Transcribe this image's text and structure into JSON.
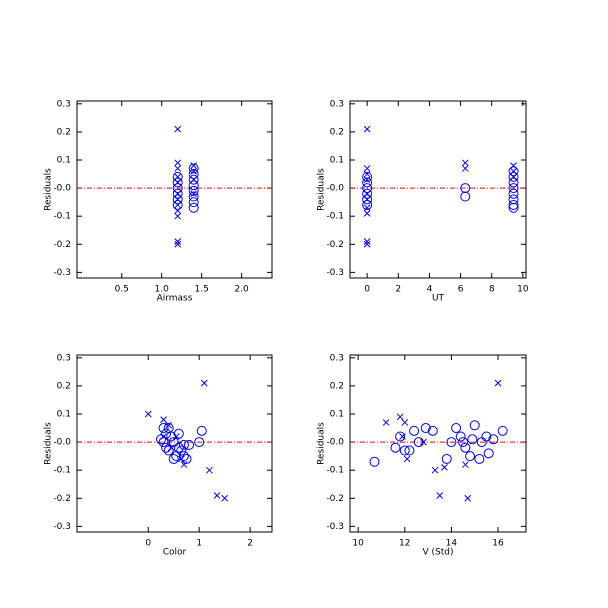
{
  "chart_data": [
    {
      "type": "scatter",
      "x_label": "Airmass",
      "y_label": "Residuals",
      "xlim": [
        -0.06,
        2.38
      ],
      "ylim": [
        -0.32,
        0.31
      ],
      "xticks": [
        0.5,
        {
          "value": 1,
          "label": "1.0"
        },
        1.5,
        {
          "value": 2,
          "label": "2.0"
        }
      ],
      "yticks": [
        -0.3,
        -0.2,
        -0.1,
        {
          "value": 0,
          "label": "-0.0"
        },
        0.1,
        0.2,
        0.3
      ],
      "hline": 0,
      "hline_color": "#ff0000",
      "series": [
        {
          "marker": "x",
          "color": "#0000ff",
          "x": [
            1.2,
            1.2,
            1.2,
            1.2,
            1.2,
            1.2,
            1.2,
            1.2,
            1.2,
            1.2,
            1.2,
            1.2,
            1.4,
            1.4,
            1.4,
            1.4
          ],
          "values": [
            0.21,
            0.09,
            0.07,
            0.04,
            0.02,
            -0.02,
            -0.04,
            -0.06,
            -0.08,
            -0.1,
            -0.19,
            -0.2,
            0.08,
            0.06,
            0.03,
            -0.02
          ]
        },
        {
          "marker": "circle",
          "color": "#0000ff",
          "x": [
            1.2,
            1.2,
            1.2,
            1.2,
            1.2,
            1.2,
            1.4,
            1.4,
            1.4,
            1.4,
            1.4,
            1.4,
            1.4,
            1.4
          ],
          "values": [
            0.04,
            0.02,
            0.0,
            -0.02,
            -0.04,
            -0.06,
            0.07,
            0.05,
            0.03,
            0.01,
            -0.01,
            -0.03,
            -0.05,
            -0.07
          ]
        }
      ]
    },
    {
      "type": "scatter",
      "x_label": "UT",
      "y_label": "Residuals",
      "xlim": [
        -1.1,
        10.2
      ],
      "ylim": [
        -0.32,
        0.31
      ],
      "xticks": [
        0,
        2,
        4,
        6,
        8,
        10
      ],
      "yticks": [
        -0.3,
        -0.2,
        -0.1,
        {
          "value": 0,
          "label": "-0.0"
        },
        0.1,
        0.2,
        0.3
      ],
      "hline": 0,
      "hline_color": "#ff0000",
      "series": [
        {
          "marker": "x",
          "color": "#0000ff",
          "x": [
            0,
            0,
            0,
            0,
            0,
            0,
            0,
            0,
            0,
            0,
            6.3,
            6.3,
            9.4,
            9.4,
            9.4
          ],
          "values": [
            0.21,
            0.07,
            0.05,
            0.03,
            -0.02,
            -0.04,
            -0.07,
            -0.09,
            -0.19,
            -0.2,
            0.09,
            0.07,
            0.08,
            0.06,
            0.04
          ]
        },
        {
          "marker": "circle",
          "color": "#0000ff",
          "x": [
            0,
            0,
            0,
            0,
            0,
            0,
            6.3,
            6.3,
            9.4,
            9.4,
            9.4,
            9.4,
            9.4,
            9.4,
            9.4,
            9.4
          ],
          "values": [
            0.04,
            0.02,
            0.0,
            -0.02,
            -0.04,
            -0.06,
            0.0,
            -0.03,
            0.06,
            0.04,
            0.02,
            0.0,
            -0.02,
            -0.04,
            -0.06,
            -0.07
          ]
        }
      ]
    },
    {
      "type": "scatter",
      "x_label": "Color",
      "y_label": "Residuals",
      "xlim": [
        -1.4,
        2.43
      ],
      "ylim": [
        -0.32,
        0.31
      ],
      "xticks": [
        0,
        1,
        2
      ],
      "yticks": [
        -0.3,
        -0.2,
        -0.1,
        {
          "value": 0,
          "label": "-0.0"
        },
        0.1,
        0.2,
        0.3
      ],
      "hline": 0,
      "hline_color": "#ff0000",
      "series": [
        {
          "marker": "x",
          "color": "#0000ff",
          "x": [
            0.0,
            0.3,
            0.4,
            1.1,
            1.2,
            1.35,
            1.5,
            0.7,
            0.65,
            0.55,
            0.3,
            0.45
          ],
          "values": [
            0.1,
            0.08,
            0.06,
            0.21,
            -0.1,
            -0.19,
            -0.2,
            -0.08,
            -0.06,
            0.02,
            0.02,
            -0.02
          ]
        },
        {
          "marker": "circle",
          "color": "#0000ff",
          "x": [
            0.3,
            0.35,
            0.3,
            0.35,
            0.4,
            0.45,
            0.5,
            0.55,
            0.6,
            0.65,
            0.7,
            0.75,
            0.5,
            0.8,
            1.0,
            1.05,
            0.4,
            0.6,
            0.7,
            0.25
          ],
          "values": [
            0.05,
            0.03,
            0.0,
            -0.02,
            -0.03,
            0.02,
            0.0,
            -0.05,
            -0.02,
            -0.03,
            -0.05,
            -0.06,
            -0.06,
            -0.01,
            0.0,
            0.04,
            0.05,
            0.03,
            -0.01,
            0.01
          ]
        }
      ]
    },
    {
      "type": "scatter",
      "x_label": "V (Std)",
      "y_label": "Residuals",
      "xlim": [
        9.65,
        17.2
      ],
      "ylim": [
        -0.32,
        0.31
      ],
      "xticks": [
        10,
        12,
        14,
        16
      ],
      "yticks": [
        -0.3,
        -0.2,
        -0.1,
        {
          "value": 0,
          "label": "-0.0"
        },
        0.1,
        0.2,
        0.3
      ],
      "hline": 0,
      "hline_color": "#ff0000",
      "series": [
        {
          "marker": "x",
          "color": "#0000ff",
          "x": [
            11.2,
            11.8,
            12.0,
            12.1,
            11.9,
            13.3,
            13.5,
            13.7,
            14.7,
            14.6,
            16.0,
            12.8
          ],
          "values": [
            0.07,
            0.09,
            0.07,
            -0.06,
            0.02,
            -0.1,
            -0.19,
            -0.09,
            -0.2,
            -0.08,
            0.21,
            0.0
          ]
        },
        {
          "marker": "circle",
          "color": "#0000ff",
          "x": [
            10.7,
            11.6,
            11.8,
            12.0,
            12.2,
            12.4,
            12.6,
            12.9,
            13.2,
            13.8,
            14.0,
            14.2,
            14.4,
            14.5,
            14.6,
            14.8,
            14.9,
            15.0,
            15.2,
            15.3,
            15.5,
            15.6,
            15.8,
            16.2
          ],
          "values": [
            -0.07,
            -0.02,
            0.02,
            -0.03,
            -0.03,
            0.04,
            0.0,
            0.05,
            0.04,
            -0.06,
            0.0,
            0.05,
            0.02,
            0.0,
            -0.02,
            -0.05,
            0.01,
            0.06,
            -0.06,
            0.0,
            0.02,
            -0.04,
            0.01,
            0.04
          ]
        }
      ]
    }
  ]
}
